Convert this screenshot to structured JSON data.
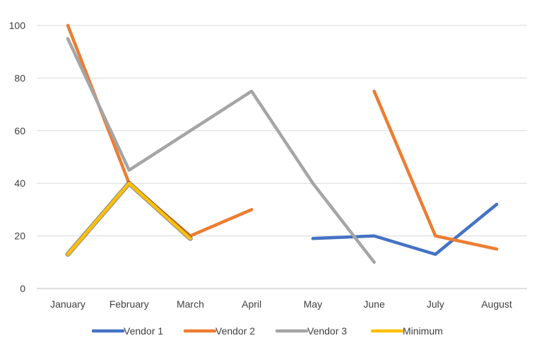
{
  "chart_data": {
    "type": "line",
    "title": "",
    "xlabel": "",
    "ylabel": "",
    "categories": [
      "January",
      "February",
      "March",
      "April",
      "May",
      "June",
      "July",
      "August"
    ],
    "ylim": [
      0,
      100
    ],
    "yticks": [
      0,
      20,
      40,
      60,
      80,
      100
    ],
    "grid": true,
    "legend": "bottom",
    "series": [
      {
        "name": "Vendor 1",
        "color": "#4472C4",
        "values": [
          null,
          null,
          null,
          null,
          19,
          20,
          13,
          32
        ]
      },
      {
        "name": "Vendor 2",
        "color": "#ED7D31",
        "values": [
          100,
          40,
          20,
          30,
          null,
          75,
          20,
          15
        ]
      },
      {
        "name": "Vendor 3",
        "color": "#A5A5A5",
        "values": [
          95,
          45,
          60,
          75,
          40,
          10,
          null,
          null
        ]
      },
      {
        "name": "Minimum",
        "color": "#FFC000",
        "values": [
          13,
          40,
          19,
          null,
          null,
          null,
          null,
          null
        ]
      }
    ]
  }
}
